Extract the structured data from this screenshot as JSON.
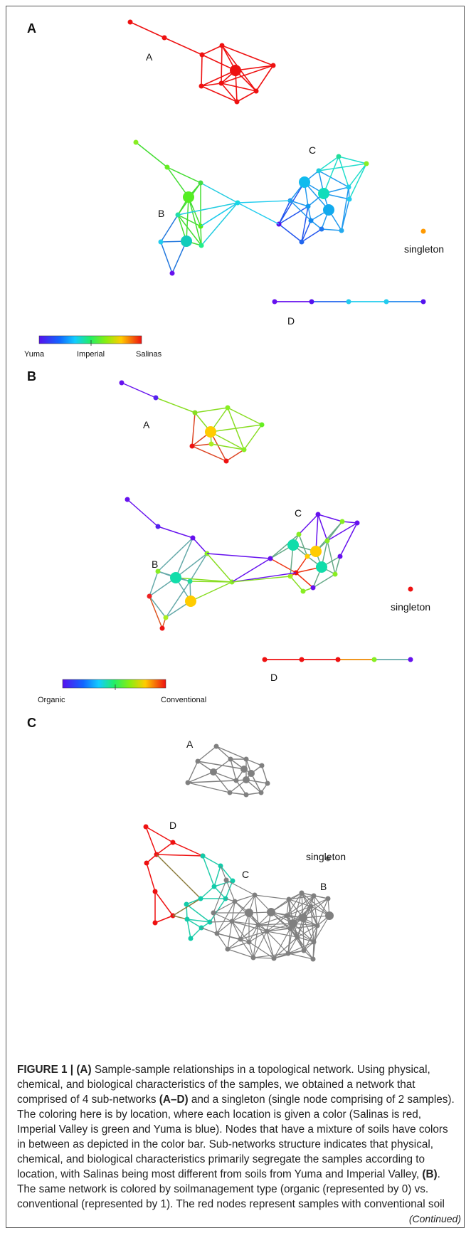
{
  "panels": {
    "a": {
      "letter": "A",
      "sub_a": "A",
      "sub_b": "B",
      "sub_c": "C",
      "sub_d": "D",
      "singleton": "singleton",
      "colorbar": {
        "left": "Yuma",
        "mid": "Imperial",
        "right": "Salinas"
      }
    },
    "b": {
      "letter": "B",
      "sub_a": "A",
      "sub_b": "B",
      "sub_c": "C",
      "sub_d": "D",
      "singleton": "singleton",
      "colorbar": {
        "left": "Organic",
        "right": "Conventional"
      }
    },
    "c": {
      "letter": "C",
      "sub_a": "A",
      "sub_b": "B",
      "sub_c": "C",
      "sub_d": "D",
      "singleton": "singleton"
    }
  },
  "caption": {
    "label": "FIGURE 1 | ",
    "part_a": "(A)",
    "text_1": " Sample-sample relationships in a topological network. Using physical, chemical, and biological characteristics of the samples, we obtained a network that comprised of 4 sub-networks ",
    "sub_range": "(A–D)",
    "text_2": " and a singleton (single node comprising of 2 samples). The coloring here is by location, where each location is given a color (Salinas is red, Imperial Valley is green and Yuma is blue). Nodes that have a mixture of soils have colors in between as depicted in the color bar. Sub-networks structure indicates that physical, chemical, and biological characteristics primarily segregate the samples according to location, with Salinas being most different from soils from Yuma and Imperial Valley, ",
    "part_b": "(B)",
    "text_3": ". The same network is colored by soilmanagement type (organic (represented by 0) vs. conventional (represented by 1). The red nodes represent samples with conventional soil",
    "continued": "(Continued)"
  },
  "colors": {
    "red": "#ee1111",
    "orange": "#ff9900",
    "yellow": "#ffcc00",
    "green": "#44dd22",
    "teal": "#11ddaa",
    "cyan": "#22ccee",
    "blue": "#2266ee",
    "purple": "#6611ee",
    "gray": "#808080",
    "olive": "#8a7a3a"
  }
}
